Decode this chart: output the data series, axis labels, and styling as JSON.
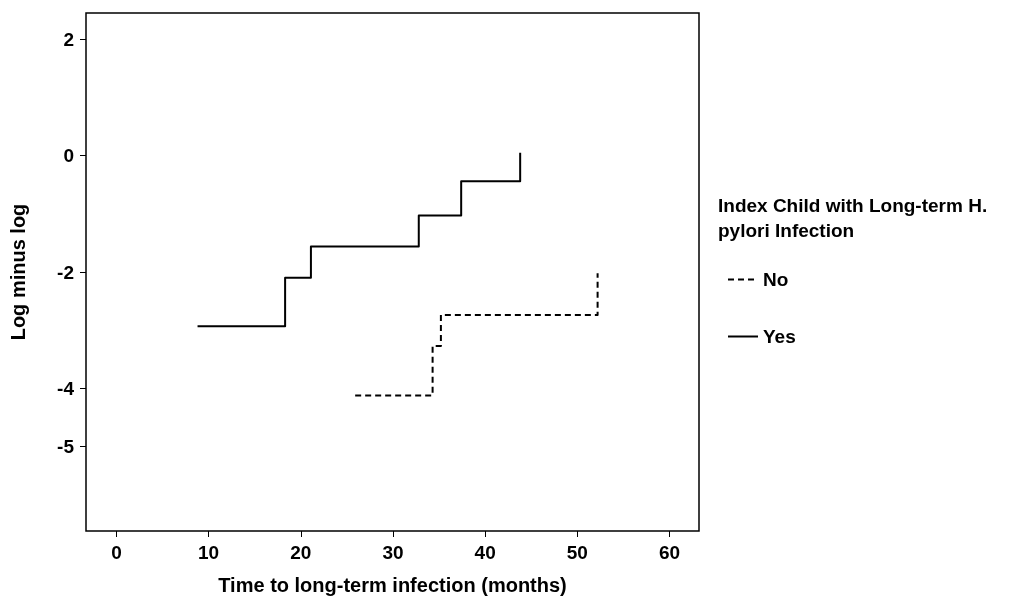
{
  "chart_data": {
    "type": "step",
    "xlabel": "Time to long-term infection (months)",
    "ylabel": "Log minus log",
    "legend_title": "Index Child with Long-term H. pylori Infection",
    "series": [
      {
        "name": "No",
        "color": "#000000",
        "line_style": "dashed",
        "x": [
          25.9,
          34.3,
          35.2,
          52.2
        ],
        "values": [
          -4.12,
          -3.27,
          -2.74,
          -2.02
        ]
      },
      {
        "name": "Yes",
        "color": "#000000",
        "line_style": "solid",
        "x": [
          8.8,
          18.3,
          21.1,
          32.8,
          37.4,
          43.8
        ],
        "values": [
          -2.93,
          -2.1,
          -1.56,
          -1.03,
          -0.44,
          0.05
        ]
      }
    ],
    "xlim": [
      -3.3,
      63.2
    ],
    "xticks": [
      0,
      10,
      20,
      30,
      40,
      50,
      60
    ],
    "ylim": [
      -6.45,
      2.45
    ],
    "yticks": [
      2,
      0,
      -2,
      -4,
      -5
    ],
    "grid": false,
    "legend": "right",
    "marker": "none"
  }
}
